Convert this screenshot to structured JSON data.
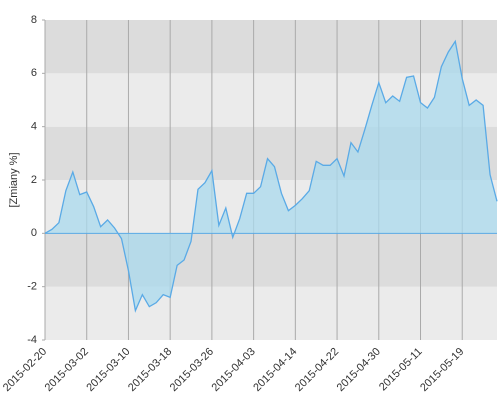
{
  "chart_data": {
    "type": "area",
    "y_label": "[Zmiany %]",
    "categories": [
      "2015-02-20",
      null,
      null,
      null,
      null,
      null,
      "2015-03-02",
      null,
      null,
      null,
      null,
      null,
      "2015-03-10",
      null,
      null,
      null,
      null,
      null,
      "2015-03-18",
      null,
      null,
      null,
      null,
      null,
      "2015-03-26",
      null,
      null,
      null,
      null,
      null,
      "2015-04-03",
      null,
      null,
      null,
      null,
      null,
      "2015-04-14",
      null,
      null,
      null,
      null,
      null,
      "2015-04-22",
      null,
      null,
      null,
      null,
      null,
      "2015-04-30",
      null,
      null,
      null,
      null,
      null,
      "2015-05-11",
      null,
      null,
      null,
      null,
      null,
      "2015-05-19",
      null,
      null,
      null,
      null,
      null
    ],
    "values": [
      0,
      0.15,
      0.4,
      1.6,
      2.3,
      1.45,
      1.55,
      1.0,
      0.25,
      0.5,
      0.2,
      -0.2,
      -1.4,
      -2.9,
      -2.3,
      -2.75,
      -2.6,
      -2.3,
      -2.4,
      -1.2,
      -1.0,
      -0.3,
      1.65,
      1.9,
      2.35,
      0.3,
      0.95,
      -0.15,
      0.55,
      1.5,
      1.5,
      1.75,
      2.8,
      2.5,
      1.5,
      0.85,
      1.05,
      1.3,
      1.6,
      2.7,
      2.55,
      2.55,
      2.8,
      2.15,
      3.4,
      3.05,
      3.9,
      4.8,
      5.65,
      4.9,
      5.15,
      4.95,
      5.85,
      5.9,
      4.9,
      4.7,
      5.1,
      6.25,
      6.8,
      7.2,
      5.8,
      4.8,
      5.0,
      4.8,
      2.2,
      1.2
    ],
    "color": "#5aaae6",
    "fill": "#a9d9ee",
    "ylim": [
      -4,
      8
    ],
    "yticks": [
      -4,
      -2,
      0,
      2,
      4,
      6,
      8
    ],
    "band_colors": [
      "#ebebeb",
      "#dcdcdc"
    ],
    "grid": true
  }
}
